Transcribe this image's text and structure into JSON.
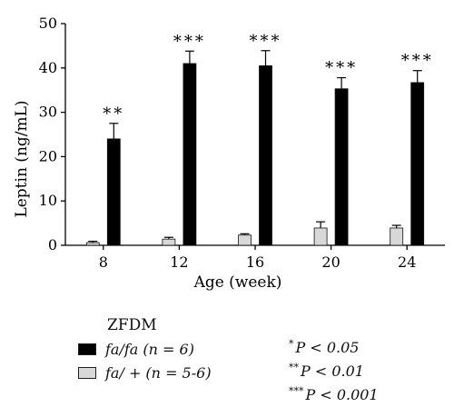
{
  "chart_data": {
    "type": "bar",
    "xlabel": "Age (week)",
    "ylabel": "Leptin (ng/mL)",
    "ylim": [
      0,
      50
    ],
    "yticks": [
      0,
      10,
      20,
      30,
      40,
      50
    ],
    "categories": [
      "8",
      "12",
      "16",
      "20",
      "24"
    ],
    "series": [
      {
        "name": "fa/+ (n = 5-6)",
        "color": "#d8d8d8",
        "values": [
          0.6,
          1.4,
          2.3,
          3.9,
          3.9
        ],
        "errors": [
          0.3,
          0.4,
          0.3,
          1.4,
          0.6
        ]
      },
      {
        "name": "fa/fa (n = 6)",
        "color": "#000000",
        "values": [
          24.0,
          41.0,
          40.5,
          35.3,
          36.7
        ],
        "errors": [
          3.5,
          2.8,
          3.4,
          2.5,
          2.7
        ],
        "significance": [
          "**",
          "***",
          "***",
          "***",
          "***"
        ]
      }
    ],
    "legend": {
      "title": "ZFDM",
      "placement": "bottom-left",
      "entries": [
        {
          "label": "fa/fa (n = 6)",
          "color": "#000000"
        },
        {
          "label": "fa/ + (n = 5-6)",
          "color": "#d8d8d8"
        }
      ]
    },
    "significance_key": [
      {
        "stars": "*",
        "text": "P < 0.05"
      },
      {
        "stars": "**",
        "text": "P < 0.01"
      },
      {
        "stars": "***",
        "text": "P < 0.001"
      }
    ]
  }
}
